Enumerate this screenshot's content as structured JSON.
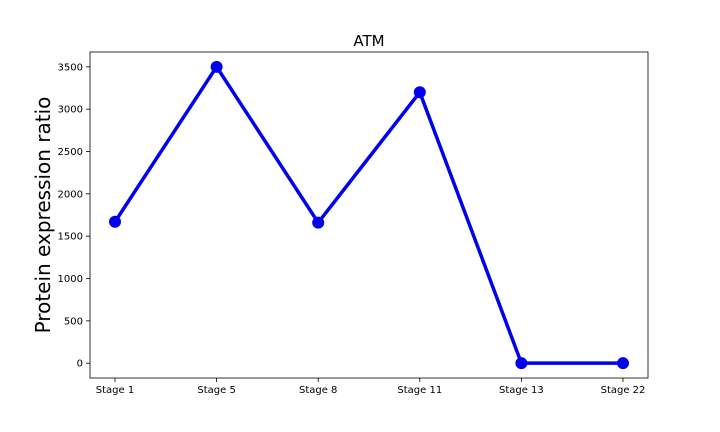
{
  "chart_data": {
    "type": "line",
    "title": "ATM",
    "xlabel": "",
    "ylabel": "Protein expression ratio",
    "categories": [
      "Stage 1",
      "Stage 5",
      "Stage 8",
      "Stage 11",
      "Stage 13",
      "Stage 22"
    ],
    "series": [
      {
        "values": [
          1670,
          3500,
          1660,
          3200,
          0,
          0
        ],
        "color": "#0000ee"
      }
    ],
    "yticks": [
      0,
      500,
      1000,
      1500,
      2000,
      2500,
      3000,
      3500
    ],
    "ylim": [
      -175,
      3675
    ],
    "grid": false,
    "legend": "none"
  }
}
